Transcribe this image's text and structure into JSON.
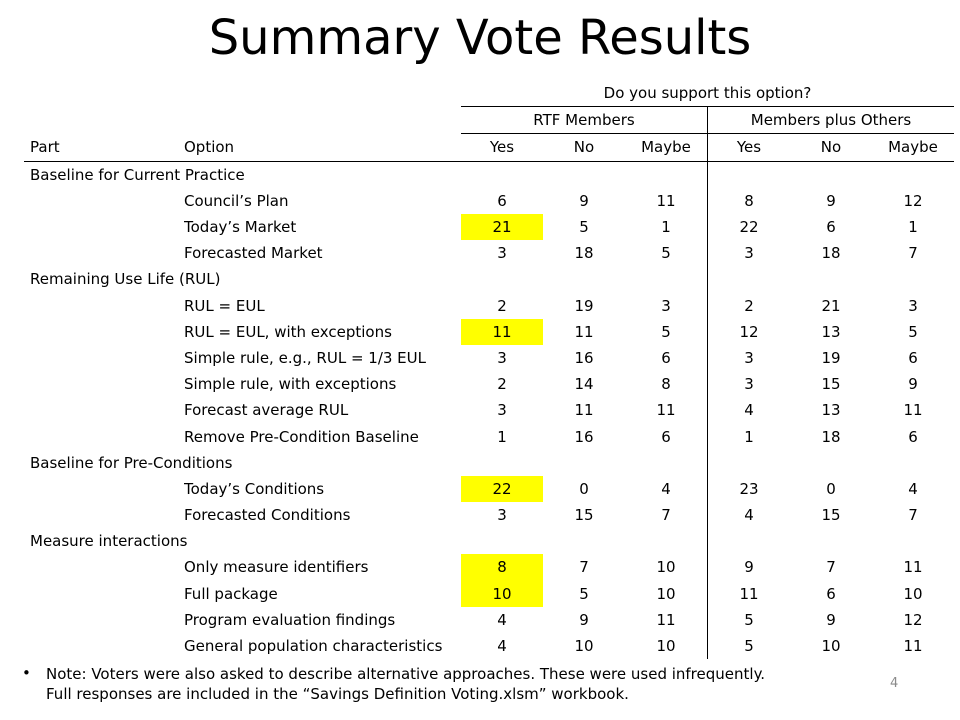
{
  "title": "Summary Vote Results",
  "header": {
    "question": "Do you support this option?",
    "group_rtf": "RTF Members",
    "group_others": "Members plus Others",
    "col_part": "Part",
    "col_option": "Option",
    "cols": [
      "Yes",
      "No",
      "Maybe",
      "Yes",
      "No",
      "Maybe"
    ]
  },
  "highlight_color": "#ffff00",
  "sections": [
    {
      "part": "Baseline for Current Practice",
      "rows": [
        {
          "option": "Council’s Plan",
          "values": [
            "6",
            "9",
            "11",
            "8",
            "9",
            "12"
          ],
          "highlight": false
        },
        {
          "option": "Today’s Market",
          "values": [
            "21",
            "5",
            "1",
            "22",
            "6",
            "1"
          ],
          "highlight": true
        },
        {
          "option": "Forecasted Market",
          "values": [
            "3",
            "18",
            "5",
            "3",
            "18",
            "7"
          ],
          "highlight": false
        }
      ]
    },
    {
      "part": "Remaining Use Life (RUL)",
      "rows": [
        {
          "option": "RUL = EUL",
          "values": [
            "2",
            "19",
            "3",
            "2",
            "21",
            "3"
          ],
          "highlight": false
        },
        {
          "option": "RUL = EUL, with exceptions",
          "values": [
            "11",
            "11",
            "5",
            "12",
            "13",
            "5"
          ],
          "highlight": true
        },
        {
          "option": "Simple rule, e.g., RUL = 1/3 EUL",
          "values": [
            "3",
            "16",
            "6",
            "3",
            "19",
            "6"
          ],
          "highlight": false
        },
        {
          "option": "Simple rule, with exceptions",
          "values": [
            "2",
            "14",
            "8",
            "3",
            "15",
            "9"
          ],
          "highlight": false
        },
        {
          "option": "Forecast average RUL",
          "values": [
            "3",
            "11",
            "11",
            "4",
            "13",
            "11"
          ],
          "highlight": false
        },
        {
          "option": "Remove Pre-Condition Baseline",
          "values": [
            "1",
            "16",
            "6",
            "1",
            "18",
            "6"
          ],
          "highlight": false
        }
      ]
    },
    {
      "part": "Baseline for Pre-Conditions",
      "rows": [
        {
          "option": "Today’s Conditions",
          "values": [
            "22",
            "0",
            "4",
            "23",
            "0",
            "4"
          ],
          "highlight": true
        },
        {
          "option": "Forecasted Conditions",
          "values": [
            "3",
            "15",
            "7",
            "4",
            "15",
            "7"
          ],
          "highlight": false
        }
      ]
    },
    {
      "part": "Measure interactions",
      "rows": [
        {
          "option": "Only measure identifiers",
          "values": [
            "8",
            "7",
            "10",
            "9",
            "7",
            "11"
          ],
          "highlight": true
        },
        {
          "option": "Full package",
          "values": [
            "10",
            "5",
            "10",
            "11",
            "6",
            "10"
          ],
          "highlight": true
        },
        {
          "option": "Program evaluation findings",
          "values": [
            "4",
            "9",
            "11",
            "5",
            "9",
            "12"
          ],
          "highlight": false
        },
        {
          "option": "General population characteristics",
          "values": [
            "4",
            "10",
            "10",
            "5",
            "10",
            "11"
          ],
          "highlight": false
        }
      ]
    }
  ],
  "note": {
    "bullet": "•",
    "line1": "Note: Voters were also asked to describe alternative approaches.  These were used infrequently.",
    "line2": "Full responses are included in the “Savings Definition Voting.xlsm” workbook."
  },
  "page_number": "4"
}
